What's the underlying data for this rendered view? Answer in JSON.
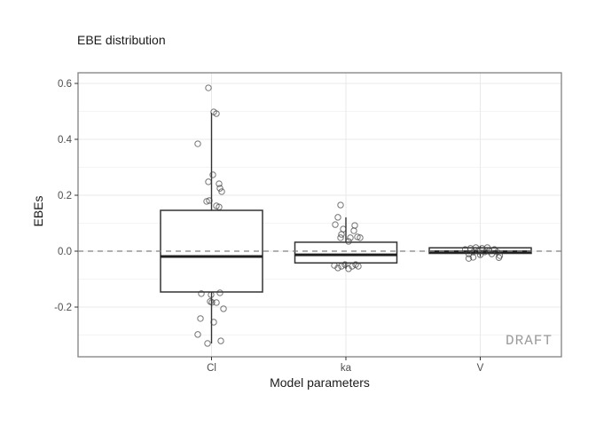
{
  "chart_data": {
    "type": "boxplot",
    "title": "EBE distribution",
    "xlabel": "Model parameters",
    "ylabel": "EBEs",
    "watermark": "DRAFT",
    "categories": [
      "Cl",
      "ka",
      "V"
    ],
    "ytick_labels": [
      "0.6",
      "0.4",
      "0.2",
      "0.0",
      "-0.2"
    ],
    "ytick_values": [
      0.6,
      0.4,
      0.2,
      0.0,
      -0.2
    ],
    "yminor_values": [
      0.5,
      0.3,
      0.1,
      -0.1,
      -0.3
    ],
    "ylim": [
      -0.378,
      0.638
    ],
    "grid": "on",
    "reference_line": {
      "y": 0.0,
      "style": "dashed"
    },
    "boxes": [
      {
        "category": "Cl",
        "q1": -0.146,
        "median": -0.019,
        "q3": 0.146,
        "whisker_low": -0.33,
        "whisker_high": 0.495
      },
      {
        "category": "ka",
        "q1": -0.042,
        "median": -0.013,
        "q3": 0.032,
        "whisker_low": -0.063,
        "whisker_high": 0.121
      },
      {
        "category": "V",
        "q1": -0.008,
        "median": -0.002,
        "q3": 0.012,
        "whisker_low": -0.02,
        "whisker_high": 0.018
      }
    ],
    "points": {
      "Cl": [
        [
          -3.5,
          0.584
        ],
        [
          2.5,
          0.498
        ],
        [
          5.5,
          0.492
        ],
        [
          -15.5,
          0.384
        ],
        [
          1.5,
          0.273
        ],
        [
          -3.5,
          0.248
        ],
        [
          8.5,
          0.241
        ],
        [
          9.5,
          0.225
        ],
        [
          11.5,
          0.213
        ],
        [
          -2.5,
          0.181
        ],
        [
          -5.5,
          0.178
        ],
        [
          5.5,
          0.162
        ],
        [
          8.5,
          0.158
        ],
        [
          -11.5,
          -0.152
        ],
        [
          -0.5,
          -0.156
        ],
        [
          9.5,
          -0.149
        ],
        [
          -1.5,
          -0.18
        ],
        [
          0.5,
          -0.183
        ],
        [
          5.5,
          -0.184
        ],
        [
          13.5,
          -0.206
        ],
        [
          -12.5,
          -0.241
        ],
        [
          2.5,
          -0.254
        ],
        [
          -15.5,
          -0.298
        ],
        [
          -4.5,
          -0.33
        ],
        [
          10.5,
          -0.321
        ]
      ],
      "ka": [
        [
          -6,
          0.165
        ],
        [
          -9,
          0.121
        ],
        [
          -12,
          0.095
        ],
        [
          10,
          0.092
        ],
        [
          -3,
          0.079
        ],
        [
          9,
          0.073
        ],
        [
          -5,
          0.06
        ],
        [
          -6,
          0.048
        ],
        [
          5,
          0.048
        ],
        [
          13,
          0.051
        ],
        [
          16,
          0.048
        ],
        [
          3,
          0.035
        ],
        [
          -13,
          -0.051
        ],
        [
          -9,
          -0.06
        ],
        [
          -5,
          -0.054
        ],
        [
          -1,
          -0.048
        ],
        [
          3,
          -0.063
        ],
        [
          7,
          -0.054
        ],
        [
          11,
          -0.048
        ],
        [
          14,
          -0.054
        ]
      ],
      "V": [
        [
          -17,
          0.006
        ],
        [
          -13,
          -0.01
        ],
        [
          -11,
          0.01
        ],
        [
          -8,
          -0.003
        ],
        [
          -5,
          0.013
        ],
        [
          -2,
          0.0
        ],
        [
          0,
          -0.013
        ],
        [
          2,
          0.01
        ],
        [
          5,
          -0.003
        ],
        [
          8,
          0.013
        ],
        [
          10,
          0.0
        ],
        [
          13,
          -0.01
        ],
        [
          16,
          0.006
        ],
        [
          19,
          -0.003
        ],
        [
          22,
          -0.016
        ],
        [
          -13,
          -0.026
        ],
        [
          -8,
          -0.022
        ],
        [
          21,
          -0.023
        ]
      ]
    },
    "colors": {
      "panel_border": "#8a8a8a",
      "grid_major": "#e9e9e9",
      "grid_minor": "#f4f4f4",
      "box_stroke": "#333333",
      "median_stroke": "#1f1f1f",
      "point_stroke": "#404040",
      "reference_line": "#808080",
      "axis_text": "#4d4d4d",
      "tick_mark": "#333333",
      "watermark_text": "#9b9b9b"
    }
  }
}
